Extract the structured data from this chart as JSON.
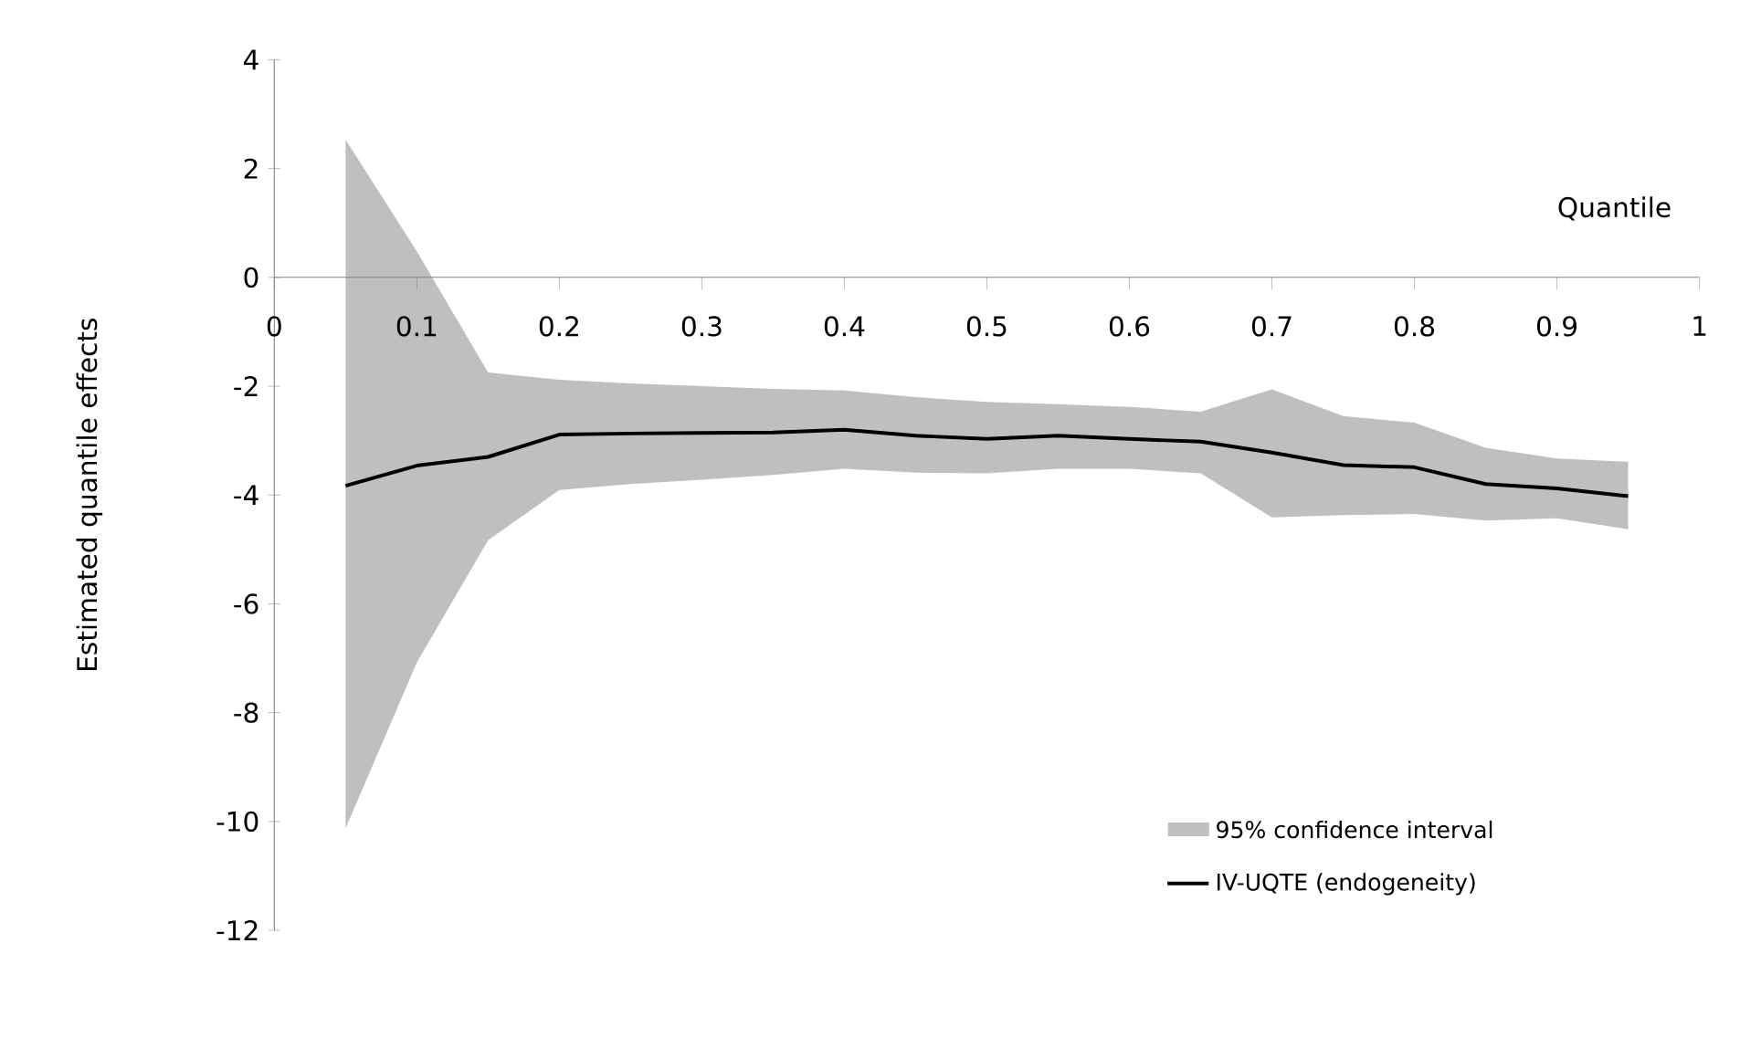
{
  "chart_data": {
    "type": "line",
    "xlabel": "Quantile",
    "ylabel": "Estimated quantile effects",
    "x": [
      0.05,
      0.1,
      0.15,
      0.2,
      0.25,
      0.3,
      0.35,
      0.4,
      0.45,
      0.5,
      0.55,
      0.6,
      0.65,
      0.7,
      0.75,
      0.8,
      0.85,
      0.9,
      0.95
    ],
    "series": [
      {
        "name": "IV-UQTE (endogeneity)",
        "color": "#000000",
        "values": [
          -3.83,
          -3.46,
          -3.3,
          -2.89,
          -2.87,
          -2.86,
          -2.85,
          -2.8,
          -2.91,
          -2.97,
          -2.91,
          -2.97,
          -3.02,
          -3.22,
          -3.45,
          -3.49,
          -3.8,
          -3.88,
          -4.02
        ],
        "lower": [
          -10.13,
          -7.08,
          -4.83,
          -3.91,
          -3.8,
          -3.72,
          -3.63,
          -3.52,
          -3.59,
          -3.6,
          -3.52,
          -3.52,
          -3.6,
          -4.41,
          -4.37,
          -4.35,
          -4.47,
          -4.43,
          -4.63
        ],
        "upper": [
          2.53,
          0.48,
          -1.75,
          -1.88,
          -1.95,
          -2.0,
          -2.05,
          -2.08,
          -2.2,
          -2.29,
          -2.33,
          -2.38,
          -2.47,
          -2.06,
          -2.55,
          -2.67,
          -3.13,
          -3.33,
          -3.39
        ]
      }
    ],
    "annotations": [
      "95% confidence interval"
    ],
    "xlim": [
      0,
      1
    ],
    "ylim": [
      -12,
      4
    ],
    "xticks": [
      0,
      0.1,
      0.2,
      0.3,
      0.4,
      0.5,
      0.6,
      0.7,
      0.8,
      0.9,
      1
    ],
    "yticks": [
      -12,
      -10,
      -8,
      -6,
      -4,
      -2,
      0,
      2,
      4
    ],
    "legend": "bottom right",
    "grid": false,
    "marker": "none",
    "line_style": "solid"
  }
}
